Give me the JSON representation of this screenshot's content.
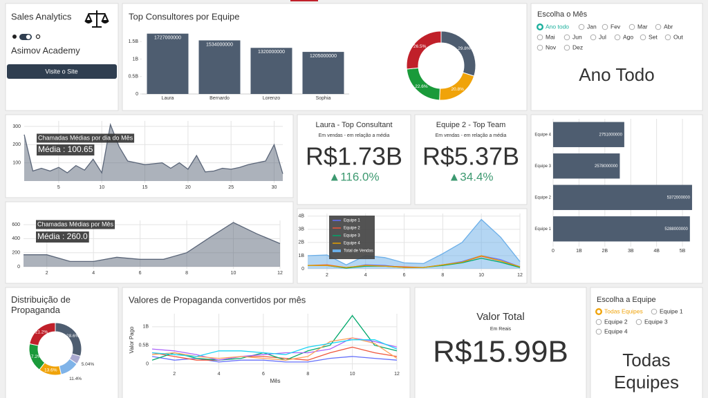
{
  "header": {
    "title": "Sales Analytics",
    "subtitle": "Asimov Academy",
    "button": "Visite o Site"
  },
  "month_filter": {
    "title": "Escolha o Mês",
    "options": [
      "Ano todo",
      "Jan",
      "Fev",
      "Mar",
      "Abr",
      "Mai",
      "Jun",
      "Jul",
      "Ago",
      "Set",
      "Out",
      "Nov",
      "Dez"
    ],
    "selected": 0,
    "display": "Ano Todo"
  },
  "team_filter": {
    "title": "Escolha a Equipe",
    "options": [
      "Todas Equipes",
      "Equipe 1",
      "Equipe 2",
      "Equipe 3",
      "Equipe 4"
    ],
    "selected": 0,
    "display": "Todas Equipes"
  },
  "kpis": [
    {
      "title": "Laura - Top Consultant",
      "subtitle": "Em vendas - em relação a média",
      "value": "R$1.73B",
      "delta": "▲116.0%"
    },
    {
      "title": "Equipe 2 - Top Team",
      "subtitle": "Em vendas - em relação a média",
      "value": "R$5.37B",
      "delta": "▲34.4%"
    },
    {
      "title": "Valor Total",
      "subtitle": "Em Reais",
      "value": "R$15.99B"
    }
  ],
  "chart_data": [
    {
      "type": "bar",
      "title": "Top Consultores por Equipe",
      "categories": [
        "Laura",
        "Bernardo",
        "Lorenzo",
        "Sophia"
      ],
      "values": [
        1727000000,
        1534000000,
        1320000000,
        1205000000
      ],
      "color": "#4e5d70",
      "ylim": [
        0,
        1800000000
      ],
      "yticks": [
        0,
        {
          "value": 500000000,
          "label": "0.5B"
        },
        {
          "value": 1000000000,
          "label": "1B"
        },
        {
          "value": 1500000000,
          "label": "1.5B"
        }
      ],
      "grid": false
    },
    {
      "type": "pie",
      "donut": true,
      "values": [
        29.8,
        20.8,
        22.6,
        26.5
      ],
      "value_labels": [
        "29.8%",
        "20.8%",
        "22.6%",
        "26.5%"
      ],
      "colors": [
        "#4e5d70",
        "#f0a30a",
        "#1a9a3a",
        "#c0202a"
      ]
    },
    {
      "type": "area",
      "x": [
        1,
        2,
        3,
        4,
        5,
        6,
        7,
        8,
        9,
        10,
        11,
        12,
        13,
        14,
        15,
        16,
        17,
        18,
        19,
        20,
        21,
        22,
        23,
        24,
        25,
        26,
        27,
        28,
        29,
        30,
        31
      ],
      "values": [
        255,
        55,
        70,
        55,
        75,
        45,
        85,
        60,
        120,
        45,
        310,
        190,
        110,
        100,
        90,
        95,
        100,
        70,
        100,
        65,
        140,
        50,
        55,
        70,
        65,
        75,
        90,
        100,
        110,
        200,
        40
      ],
      "color": "#5a6578",
      "xlim": [
        1,
        31
      ],
      "xticks": [
        5,
        10,
        15,
        20,
        25,
        30
      ],
      "ylim": [
        0,
        330
      ],
      "yticks": [
        100,
        200,
        300
      ],
      "grid": true,
      "annotations": [
        "Chamadas Médias por dia do Mês",
        "Média : 100.65"
      ]
    },
    {
      "type": "area",
      "x": [
        1,
        2,
        3,
        4,
        5,
        6,
        7,
        8,
        9,
        10,
        11,
        12
      ],
      "values": [
        170,
        170,
        75,
        75,
        135,
        105,
        105,
        200,
        420,
        630,
        470,
        330
      ],
      "color": "#5a6578",
      "xlim": [
        1,
        12
      ],
      "xticks": [
        2,
        4,
        6,
        8,
        10,
        12
      ],
      "ylim": [
        0,
        660
      ],
      "yticks": [
        0,
        200,
        400,
        600
      ],
      "grid": true,
      "annotations": [
        "Chamadas Médias por Mês",
        "Média : 260.0"
      ]
    },
    {
      "type": "line",
      "x": [
        1,
        2,
        3,
        4,
        5,
        6,
        7,
        8,
        9,
        10,
        11,
        12
      ],
      "xlim": [
        1,
        12
      ],
      "xticks": [
        2,
        4,
        6,
        8,
        10,
        12
      ],
      "ylim": [
        0,
        4200000000
      ],
      "yticks": [
        0,
        {
          "value": 1000000000,
          "label": "1B"
        },
        {
          "value": 2000000000,
          "label": "2B"
        },
        {
          "value": 3000000000,
          "label": "3B"
        },
        {
          "value": 4000000000,
          "label": "4B"
        }
      ],
      "grid": true,
      "legend": "top-left",
      "series": [
        {
          "name": "Equipe 1",
          "color": "#636efa",
          "values": [
            250000000.0,
            250000000.0,
            50000000.0,
            300000000.0,
            250000000.0,
            100000000.0,
            100000000.0,
            300000000.0,
            550000000.0,
            1000000000.0,
            700000000.0,
            150000000.0
          ]
        },
        {
          "name": "Equipe 2",
          "color": "#ef553b",
          "values": [
            250000000.0,
            300000000.0,
            100000000.0,
            250000000.0,
            200000000.0,
            150000000.0,
            100000000.0,
            300000000.0,
            500000000.0,
            950000000.0,
            600000000.0,
            150000000.0
          ]
        },
        {
          "name": "Equipe 3",
          "color": "#00a86b",
          "values": [
            250000000.0,
            250000000.0,
            50000000.0,
            200000000.0,
            200000000.0,
            100000000.0,
            100000000.0,
            250000000.0,
            450000000.0,
            800000000.0,
            500000000.0,
            100000000.0
          ]
        },
        {
          "name": "Equipe 4",
          "color": "#e6a100",
          "values": [
            250000000.0,
            250000000.0,
            100000000.0,
            250000000.0,
            200000000.0,
            100000000.0,
            100000000.0,
            300000000.0,
            500000000.0,
            1000000000.0,
            600000000.0,
            150000000.0
          ]
        },
        {
          "name": "Total de Vendas",
          "color": "#6aaee8",
          "fill": true,
          "values": [
            1000000000.0,
            1050000000.0,
            300000000.0,
            1000000000.0,
            850000000.0,
            450000000.0,
            400000000.0,
            1150000000.0,
            2000000000.0,
            3750000000.0,
            2400000000.0,
            550000000.0
          ]
        }
      ]
    },
    {
      "type": "hbar",
      "categories": [
        "Equipe 1",
        "Equipe 2",
        "Equipe 3",
        "Equipe 4"
      ],
      "values": [
        5288000000,
        5372000000,
        2578000000,
        2751000000
      ],
      "color": "#4e5d70",
      "xlim": [
        0,
        5400000000
      ],
      "xticks": [
        0,
        {
          "value": 1000000000,
          "label": "1B"
        },
        {
          "value": 2000000000,
          "label": "2B"
        },
        {
          "value": 3000000000,
          "label": "3B"
        },
        {
          "value": 4000000000,
          "label": "4B"
        },
        {
          "value": 5000000000,
          "label": "5B"
        }
      ],
      "grid": true
    },
    {
      "type": "pie",
      "donut": true,
      "title": "Distribuição de Propaganda",
      "values": [
        28.6,
        5.04,
        11.4,
        13.6,
        17.2,
        21.2
      ],
      "value_labels": [
        "28.6%",
        "5.04%",
        "11.4%",
        "13.6%",
        "17.2%",
        "21.2%"
      ],
      "colors": [
        "#4e5d70",
        "#a9a9d0",
        "#7fb3e8",
        "#f0a30a",
        "#1a9a3a",
        "#c0202a"
      ]
    },
    {
      "type": "line",
      "title": "Valores de Propaganda convertidos por mês",
      "xlabel": "Mês",
      "ylabel": "Valor Pago",
      "x": [
        1,
        2,
        3,
        4,
        5,
        6,
        7,
        8,
        9,
        10,
        11,
        12
      ],
      "xlim": [
        1,
        12
      ],
      "xticks": [
        2,
        4,
        6,
        8,
        10,
        12
      ],
      "ylim": [
        -100000000,
        1350000000
      ],
      "yticks": [
        0,
        {
          "value": 500000000,
          "label": "0.5B"
        },
        {
          "value": 1000000000,
          "label": "1B"
        }
      ],
      "grid": true,
      "series": [
        {
          "color": "#636efa",
          "values": [
            200000000.0,
            100000000.0,
            150000000.0,
            50000000.0,
            100000000.0,
            100000000.0,
            50000000.0,
            50000000.0,
            150000000.0,
            200000000.0,
            150000000.0,
            100000000.0
          ]
        },
        {
          "color": "#ef553b",
          "values": [
            300000000.0,
            200000000.0,
            100000000.0,
            100000000.0,
            200000000.0,
            200000000.0,
            150000000.0,
            100000000.0,
            300000000.0,
            450000000.0,
            300000000.0,
            200000000.0
          ]
        },
        {
          "color": "#00a86b",
          "values": [
            100000000.0,
            300000000.0,
            150000000.0,
            100000000.0,
            150000000.0,
            300000000.0,
            100000000.0,
            350000000.0,
            500000000.0,
            1300000000.0,
            500000000.0,
            350000000.0
          ]
        },
        {
          "color": "#ab63fa",
          "values": [
            400000000.0,
            350000000.0,
            250000000.0,
            100000000.0,
            200000000.0,
            250000000.0,
            300000000.0,
            300000000.0,
            400000000.0,
            700000000.0,
            600000000.0,
            450000000.0
          ]
        },
        {
          "color": "#ffa15a",
          "values": [
            250000000.0,
            300000000.0,
            200000000.0,
            150000000.0,
            200000000.0,
            150000000.0,
            100000000.0,
            200000000.0,
            600000000.0,
            700000000.0,
            550000000.0,
            150000000.0
          ]
        },
        {
          "color": "#19d3f3",
          "values": [
            300000000.0,
            250000000.0,
            200000000.0,
            350000000.0,
            350000000.0,
            300000000.0,
            250000000.0,
            450000000.0,
            550000000.0,
            650000000.0,
            650000000.0,
            400000000.0
          ]
        }
      ]
    }
  ]
}
